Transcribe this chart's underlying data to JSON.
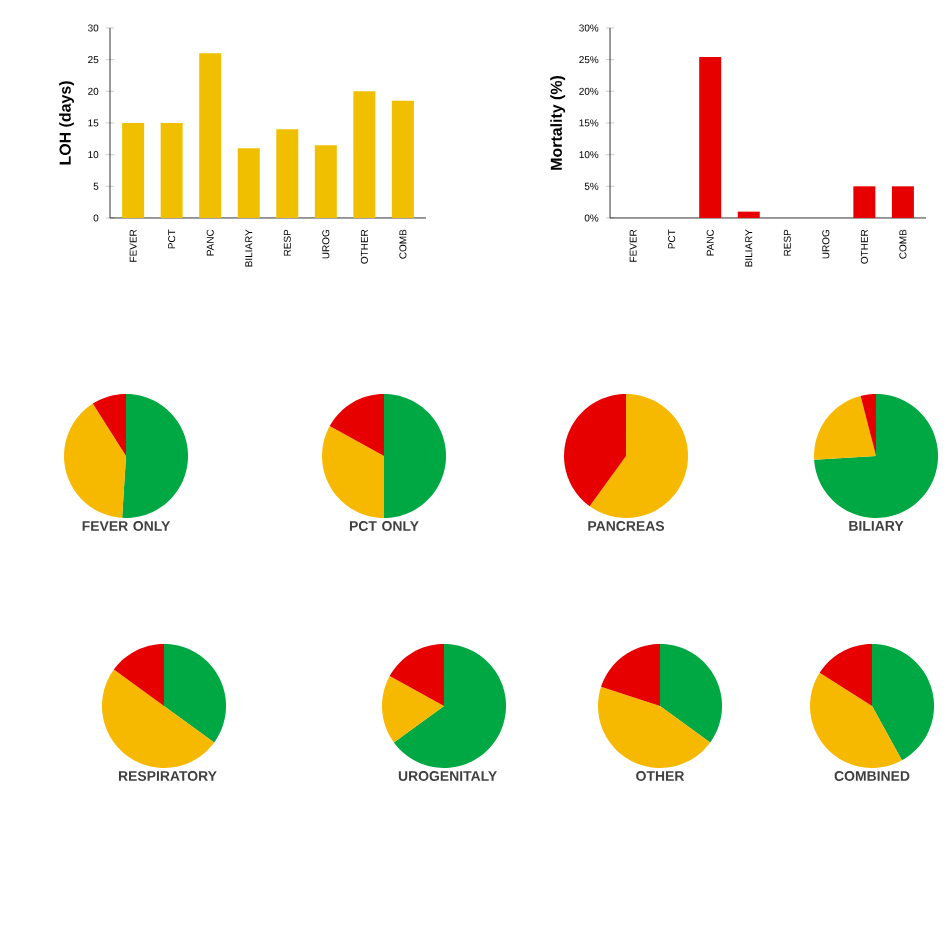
{
  "chart_data": [
    {
      "type": "bar",
      "ylabel": "LOH (days)",
      "categories": [
        "FEVER",
        "PCT",
        "PANC",
        "BILIARY",
        "RESP",
        "UROG",
        "OTHER",
        "COMB"
      ],
      "values": [
        15,
        15,
        26,
        11,
        14,
        11.5,
        20,
        18.5
      ],
      "color": "#f0c000",
      "ylim": [
        0,
        30
      ],
      "yticks": [
        0,
        5,
        10,
        15,
        20,
        25,
        30
      ],
      "grid": false
    },
    {
      "type": "bar",
      "ylabel": "Mortality (%)",
      "categories": [
        "FEVER",
        "PCT",
        "PANC",
        "BILIARY",
        "RESP",
        "UROG",
        "OTHER",
        "COMB"
      ],
      "values": [
        0,
        0,
        25.4,
        1,
        0,
        0,
        5,
        5
      ],
      "color": "#e60000",
      "ylim": [
        0,
        30
      ],
      "yticks": [
        {
          "value": 0,
          "label": "0%"
        },
        {
          "value": 5,
          "label": "5%"
        },
        {
          "value": 10,
          "label": "10%"
        },
        {
          "value": 15,
          "label": "15%"
        },
        {
          "value": 20,
          "label": "20%"
        },
        {
          "value": 25,
          "label": "25%"
        },
        {
          "value": 30,
          "label": "30%"
        }
      ],
      "grid": false
    },
    {
      "type": "pie",
      "title": "FEVER ONLY",
      "categories": [
        null,
        null,
        null
      ],
      "values": [
        51,
        40,
        9
      ],
      "colors": [
        "#00a843",
        "#f7b900",
        "#e60000"
      ]
    },
    {
      "type": "pie",
      "title": "PCT ONLY",
      "categories": [
        null,
        null,
        null
      ],
      "values": [
        50,
        33,
        17
      ],
      "colors": [
        "#00a843",
        "#f7b900",
        "#e60000"
      ]
    },
    {
      "type": "pie",
      "title": "PANCREAS",
      "categories": [
        null,
        null,
        null
      ],
      "values": [
        0,
        60,
        40
      ],
      "colors": [
        "#00a843",
        "#f7b900",
        "#e60000"
      ]
    },
    {
      "type": "pie",
      "title": "BILIARY",
      "categories": [
        null,
        null,
        null
      ],
      "values": [
        74,
        22,
        4
      ],
      "colors": [
        "#00a843",
        "#f7b900",
        "#e60000"
      ]
    },
    {
      "type": "pie",
      "title": "RESPIRATORY",
      "categories": [
        null,
        null,
        null
      ],
      "values": [
        35,
        50,
        15
      ],
      "colors": [
        "#00a843",
        "#f7b900",
        "#e60000"
      ]
    },
    {
      "type": "pie",
      "title": "UROGENITALY",
      "categories": [
        null,
        null,
        null
      ],
      "values": [
        65,
        18,
        17
      ],
      "colors": [
        "#00a843",
        "#f7b900",
        "#e60000"
      ]
    },
    {
      "type": "pie",
      "title": "OTHER",
      "categories": [
        null,
        null,
        null
      ],
      "values": [
        35,
        45,
        20
      ],
      "colors": [
        "#00a843",
        "#f7b900",
        "#e60000"
      ]
    },
    {
      "type": "pie",
      "title": "COMBINED",
      "categories": [
        null,
        null,
        null
      ],
      "values": [
        42,
        42,
        16
      ],
      "colors": [
        "#00a843",
        "#f7b900",
        "#e60000"
      ]
    }
  ]
}
